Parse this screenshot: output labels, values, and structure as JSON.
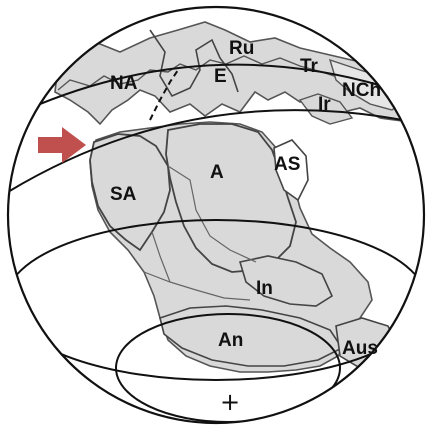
{
  "map": {
    "labels": {
      "north_america": "NA",
      "russia": "Ru",
      "europe": "E",
      "tarim": "Tr",
      "north_china": "NCh",
      "iran": "Ir",
      "south_america": "SA",
      "africa": "A",
      "arabia": "AS",
      "india": "In",
      "antarctica": "An",
      "australia": "Aus"
    },
    "pole_marker": "+",
    "arrow_color": "#c0504d",
    "continent_fill": "#d9d9d9",
    "outline_color": "#555555"
  }
}
